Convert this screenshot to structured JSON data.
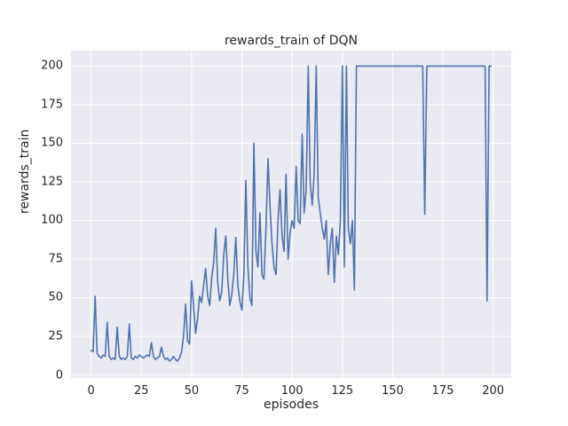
{
  "figure": {
    "background": "#ffffff"
  },
  "chart_data": {
    "type": "line",
    "title": "rewards_train of DQN",
    "xlabel": "episodes",
    "ylabel": "rewards_train",
    "x_start": 0,
    "x_step": 1,
    "x_range": [
      0,
      199
    ],
    "values": [
      16,
      15,
      51,
      14,
      12,
      11,
      13,
      12,
      34,
      12,
      10,
      11,
      10,
      31,
      12,
      10,
      11,
      10,
      12,
      33,
      11,
      10,
      12,
      11,
      13,
      12,
      11,
      12,
      13,
      12,
      21,
      12,
      10,
      11,
      12,
      18,
      12,
      10,
      11,
      9,
      10,
      12,
      10,
      9,
      11,
      15,
      25,
      46,
      22,
      20,
      61,
      44,
      27,
      37,
      51,
      47,
      58,
      69,
      51,
      45,
      63,
      73,
      95,
      60,
      48,
      54,
      78,
      90,
      62,
      45,
      52,
      66,
      89,
      58,
      48,
      42,
      65,
      126,
      70,
      50,
      45,
      150,
      80,
      70,
      105,
      65,
      62,
      95,
      140,
      110,
      85,
      70,
      65,
      100,
      120,
      90,
      80,
      130,
      75,
      92,
      100,
      95,
      135,
      100,
      98,
      156,
      105,
      120,
      200,
      125,
      110,
      130,
      200,
      115,
      105,
      95,
      88,
      100,
      65,
      85,
      95,
      60,
      90,
      78,
      100,
      200,
      70,
      200,
      95,
      85,
      100,
      55,
      200,
      200,
      200,
      200,
      200,
      200,
      200,
      200,
      200,
      200,
      200,
      200,
      200,
      200,
      200,
      200,
      200,
      200,
      200,
      200,
      200,
      200,
      200,
      200,
      200,
      200,
      200,
      200,
      200,
      200,
      200,
      200,
      200,
      200,
      104,
      200,
      200,
      200,
      200,
      200,
      200,
      200,
      200,
      200,
      200,
      200,
      200,
      200,
      200,
      200,
      200,
      200,
      200,
      200,
      200,
      200,
      200,
      200,
      200,
      200,
      200,
      200,
      200,
      200,
      200,
      48,
      200,
      200
    ],
    "xlim": [
      -10,
      209
    ],
    "ylim": [
      -2,
      210
    ],
    "xticks": [
      0,
      25,
      50,
      75,
      100,
      125,
      150,
      175,
      200
    ],
    "yticks": [
      0,
      25,
      50,
      75,
      100,
      125,
      150,
      175,
      200
    ],
    "grid": true,
    "legend_position": "none",
    "line_color": "#4c72b0",
    "plot_bg": "#eaeaf2",
    "grid_color": "#ffffff",
    "text_color": "#262626"
  }
}
